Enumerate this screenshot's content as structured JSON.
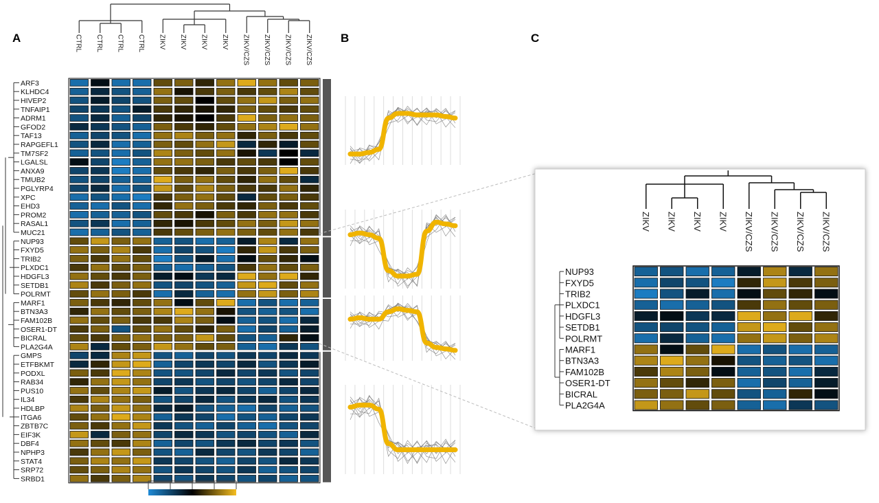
{
  "panels": {
    "a": "A",
    "b": "B",
    "c": "C"
  },
  "colors": {
    "low": "#1f8ad6",
    "mid": "#000000",
    "high": "#f5bd1f",
    "trend": "#f0b400",
    "cluster_bar": "#555555"
  },
  "chart_data": [
    {
      "type": "heatmap",
      "panel": "A",
      "columns": [
        "CTRL",
        "CTRL",
        "CTRL",
        "CTRL",
        "ZIKV",
        "ZIKV",
        "ZIKV",
        "ZIKV",
        "ZIKV/CZS",
        "ZIKV/CZS",
        "ZIKV/CZS",
        "ZIKV/CZS"
      ],
      "rows": [
        "ARF3",
        "KLHDC4",
        "HIVEP2",
        "TNFAIP1",
        "ADRM1",
        "GFOD2",
        "TAF13",
        "RAPGEFL1",
        "TM7SF2",
        "LGALSL",
        "ANXA9",
        "TMUB2",
        "PGLYRP4",
        "XPC",
        "EHD3",
        "PROM2",
        "RASAL1",
        "MUC21",
        "NUP93",
        "FXYD5",
        "TRIB2",
        "PLXDC1",
        "HDGFL3",
        "SETDB1",
        "POLRMT",
        "MARF1",
        "BTN3A3",
        "FAM102B",
        "OSER1-DT",
        "BICRAL",
        "PLA2G4A",
        "GMPS",
        "ETFBKMT",
        "PODXL",
        "RAB34",
        "PUS10",
        "IL34",
        "HDLBP",
        "ITGA6",
        "ZBTB7C",
        "EIF3K",
        "DBF4",
        "NPHP3",
        "STAT4",
        "SRP72",
        "SRBD1"
      ],
      "values": [
        [
          -0.8,
          -0.1,
          -0.8,
          -0.8,
          0.4,
          0.5,
          0.2,
          0.6,
          0.9,
          0.6,
          0.4,
          0.5
        ],
        [
          -0.7,
          -0.3,
          -0.6,
          -0.7,
          0.6,
          0.1,
          0.3,
          0.5,
          0.3,
          0.4,
          0.7,
          0.4
        ],
        [
          -0.6,
          -0.2,
          -0.5,
          -0.6,
          0.5,
          0.4,
          0.0,
          0.4,
          0.6,
          0.8,
          0.5,
          0.6
        ],
        [
          -0.5,
          -0.4,
          -0.6,
          -0.2,
          0.3,
          0.2,
          0.1,
          0.2,
          0.5,
          0.4,
          0.3,
          0.4
        ],
        [
          -0.6,
          -0.3,
          -0.7,
          -0.5,
          0.2,
          0.1,
          0.0,
          0.3,
          0.9,
          0.5,
          0.6,
          0.5
        ],
        [
          -0.3,
          -0.4,
          -0.6,
          -0.7,
          0.5,
          0.3,
          0.2,
          0.4,
          0.6,
          0.7,
          0.9,
          0.6
        ],
        [
          -0.7,
          -0.5,
          -0.6,
          -0.8,
          0.6,
          0.7,
          0.5,
          0.6,
          0.2,
          0.5,
          0.3,
          0.4
        ],
        [
          -0.6,
          -0.3,
          -0.8,
          -0.7,
          0.5,
          0.4,
          0.6,
          0.8,
          -0.3,
          0.2,
          -0.2,
          0.4
        ],
        [
          -0.7,
          -0.6,
          -0.8,
          -0.6,
          0.7,
          0.5,
          0.4,
          0.6,
          0.1,
          -0.4,
          0.0,
          -0.3
        ],
        [
          -0.1,
          -0.5,
          -0.9,
          -0.7,
          0.6,
          0.6,
          0.5,
          0.3,
          0.4,
          0.3,
          0.0,
          0.4
        ],
        [
          -0.5,
          -0.4,
          -0.9,
          -0.8,
          0.4,
          0.3,
          0.2,
          0.5,
          0.3,
          0.5,
          0.9,
          0.3
        ],
        [
          -0.6,
          -0.5,
          -0.7,
          -0.7,
          0.9,
          0.5,
          0.6,
          0.4,
          0.2,
          0.6,
          0.4,
          -0.3
        ],
        [
          -0.5,
          -0.3,
          -0.8,
          -0.6,
          0.8,
          0.4,
          0.7,
          0.5,
          0.3,
          0.3,
          0.6,
          0.2
        ],
        [
          -0.8,
          -0.6,
          -0.8,
          -0.9,
          0.3,
          0.5,
          0.6,
          0.4,
          -0.3,
          0.4,
          0.5,
          0.3
        ],
        [
          -0.7,
          -0.8,
          -0.6,
          -0.8,
          0.2,
          0.6,
          0.5,
          0.3,
          0.2,
          0.5,
          0.3,
          0.4
        ],
        [
          -0.8,
          -0.7,
          -0.7,
          -0.6,
          0.4,
          0.3,
          0.1,
          0.5,
          0.3,
          0.6,
          0.6,
          0.3
        ],
        [
          -0.6,
          -0.4,
          -0.8,
          -0.7,
          0.2,
          0.1,
          0.3,
          0.4,
          0.6,
          0.5,
          0.8,
          0.6
        ],
        [
          -0.8,
          -0.7,
          -0.6,
          -0.7,
          0.3,
          0.4,
          0.5,
          0.6,
          0.5,
          0.4,
          0.6,
          0.3
        ],
        [
          0.4,
          0.8,
          0.5,
          0.6,
          -0.7,
          -0.6,
          -0.8,
          -0.7,
          -0.2,
          0.7,
          -0.3,
          0.6
        ],
        [
          0.6,
          0.5,
          0.7,
          0.3,
          -0.8,
          -0.5,
          -0.6,
          -0.9,
          0.2,
          0.8,
          0.3,
          0.5
        ],
        [
          0.5,
          0.3,
          0.6,
          0.4,
          -0.9,
          -0.6,
          -0.2,
          -0.8,
          -0.1,
          0.4,
          0.2,
          -0.1
        ],
        [
          0.3,
          0.6,
          0.4,
          0.5,
          -0.7,
          -0.8,
          -0.7,
          -0.6,
          0.3,
          0.6,
          0.4,
          0.5
        ],
        [
          0.6,
          0.4,
          0.3,
          0.5,
          -0.2,
          -0.1,
          -0.4,
          -0.3,
          0.9,
          0.6,
          0.9,
          0.2
        ],
        [
          0.7,
          0.3,
          0.5,
          0.6,
          -0.6,
          -0.5,
          -0.6,
          -0.7,
          0.8,
          0.9,
          0.4,
          0.6
        ],
        [
          0.4,
          0.6,
          0.5,
          0.3,
          -0.8,
          -0.3,
          -0.7,
          -0.8,
          0.6,
          0.8,
          0.5,
          0.7
        ],
        [
          0.5,
          0.3,
          0.2,
          0.4,
          0.6,
          -0.1,
          0.4,
          0.9,
          -0.8,
          -0.6,
          -0.8,
          -0.7
        ],
        [
          0.2,
          0.6,
          0.4,
          0.5,
          0.7,
          0.9,
          0.6,
          0.1,
          -0.6,
          -0.7,
          -0.6,
          -0.8
        ],
        [
          0.6,
          0.4,
          0.5,
          0.3,
          0.3,
          0.7,
          0.5,
          -0.1,
          -0.7,
          -0.6,
          -0.8,
          -0.3
        ],
        [
          0.3,
          0.5,
          -0.6,
          0.4,
          0.6,
          0.4,
          0.2,
          0.5,
          -0.8,
          -0.5,
          -0.7,
          -0.2
        ],
        [
          0.4,
          0.3,
          0.5,
          0.6,
          0.5,
          0.5,
          0.8,
          0.4,
          -0.6,
          -0.7,
          0.2,
          -0.1
        ],
        [
          0.7,
          -0.3,
          0.4,
          0.5,
          0.8,
          0.6,
          0.4,
          0.5,
          -0.7,
          -0.8,
          -0.4,
          -0.6
        ],
        [
          -0.5,
          -0.3,
          0.7,
          0.8,
          -0.6,
          -0.7,
          -0.5,
          -0.6,
          -0.4,
          -0.5,
          -0.3,
          -0.4
        ],
        [
          -0.3,
          0.2,
          0.8,
          0.9,
          -0.7,
          -0.5,
          -0.4,
          -0.5,
          -0.3,
          -0.6,
          -0.4,
          -0.2
        ],
        [
          0.5,
          0.3,
          0.9,
          0.7,
          -0.6,
          -0.6,
          -0.5,
          -0.3,
          -0.5,
          -0.4,
          -0.6,
          -0.5
        ],
        [
          0.2,
          0.6,
          0.8,
          0.6,
          -0.5,
          -0.4,
          -0.6,
          -0.5,
          -0.6,
          -0.5,
          -0.3,
          -0.5
        ],
        [
          0.6,
          0.4,
          0.7,
          0.8,
          -0.2,
          -0.6,
          -0.4,
          -0.3,
          -0.5,
          -0.7,
          -0.5,
          -0.3
        ],
        [
          0.3,
          0.7,
          0.6,
          0.5,
          -0.6,
          -0.5,
          -0.3,
          -0.6,
          -0.4,
          -0.3,
          -0.6,
          -0.4
        ],
        [
          0.7,
          0.5,
          0.8,
          0.6,
          -0.3,
          -0.2,
          -0.6,
          -0.7,
          -0.8,
          -0.5,
          -0.7,
          -0.6
        ],
        [
          0.4,
          0.6,
          0.9,
          0.7,
          -0.7,
          -0.4,
          -0.5,
          -0.8,
          -0.6,
          -0.7,
          -0.5,
          -0.4
        ],
        [
          0.5,
          0.3,
          0.6,
          0.8,
          -0.4,
          -0.6,
          -0.7,
          -0.5,
          -0.7,
          -0.8,
          -0.6,
          -0.5
        ],
        [
          0.8,
          -0.3,
          0.5,
          0.6,
          -0.5,
          -0.3,
          -0.4,
          -0.6,
          -0.5,
          -0.6,
          -0.7,
          -0.3
        ],
        [
          0.6,
          0.4,
          0.3,
          0.7,
          -0.7,
          -0.5,
          -0.6,
          -0.4,
          -0.3,
          -0.5,
          -0.4,
          -0.6
        ],
        [
          0.3,
          0.6,
          0.8,
          0.5,
          -0.6,
          -0.7,
          -0.3,
          -0.5,
          -0.6,
          -0.4,
          -0.5,
          -0.7
        ],
        [
          0.5,
          0.7,
          0.6,
          0.8,
          -0.4,
          -0.5,
          -0.6,
          -0.7,
          -0.5,
          -0.6,
          -0.3,
          -0.4
        ],
        [
          0.4,
          0.5,
          0.7,
          0.6,
          -0.6,
          -0.4,
          -0.5,
          -0.6,
          -0.4,
          -0.7,
          -0.6,
          -0.5
        ],
        [
          0.6,
          0.3,
          0.5,
          0.7,
          -0.5,
          -0.6,
          -0.4,
          -0.5,
          -0.6,
          -0.5,
          -0.7,
          -0.6
        ]
      ],
      "color_scale": {
        "colors": [
          "#1f8ad6",
          "#000000",
          "#f5bd1f"
        ],
        "range": [
          -1,
          1
        ]
      },
      "row_clusters": [
        [
          0,
          17
        ],
        [
          18,
          24
        ],
        [
          25,
          30
        ],
        [
          31,
          45
        ]
      ],
      "highlight": {
        "rows": [
          18,
          30
        ],
        "cols": [
          4,
          11
        ]
      }
    },
    {
      "type": "line",
      "panel": "B",
      "timepoints": 12,
      "clusters": [
        {
          "trend": [
            -0.75,
            -0.75,
            -0.7,
            -0.6,
            0.4,
            0.55,
            0.55,
            0.5,
            0.5,
            0.5,
            0.45,
            0.4
          ]
        },
        {
          "trend": [
            0.4,
            0.45,
            0.4,
            0.3,
            -0.6,
            -0.75,
            -0.75,
            -0.7,
            0.5,
            0.75,
            0.7,
            0.65
          ]
        },
        {
          "trend": [
            0.3,
            0.35,
            0.3,
            0.3,
            0.55,
            0.65,
            0.6,
            0.55,
            -0.5,
            -0.65,
            -0.7,
            -0.75
          ]
        },
        {
          "trend": [
            0.55,
            0.6,
            0.6,
            0.5,
            -0.35,
            -0.5,
            -0.5,
            -0.5,
            -0.5,
            -0.5,
            -0.5,
            -0.5
          ]
        }
      ]
    },
    {
      "type": "heatmap",
      "panel": "C",
      "columns": [
        "ZIKV",
        "ZIKV",
        "ZIKV",
        "ZIKV",
        "ZIKV/CZS",
        "ZIKV/CZS",
        "ZIKV/CZS",
        "ZIKV/CZS"
      ],
      "rows": [
        "NUP93",
        "FXYD5",
        "TRIB2",
        "PLXDC1",
        "HDGFL3",
        "SETDB1",
        "POLRMT",
        "MARF1",
        "BTN3A3",
        "FAM102B",
        "OSER1-DT",
        "BICRAL",
        "PLA2G4A"
      ],
      "values": [
        [
          -0.7,
          -0.6,
          -0.8,
          -0.7,
          -0.2,
          0.7,
          -0.3,
          0.6
        ],
        [
          -0.8,
          -0.5,
          -0.6,
          -0.9,
          0.2,
          0.8,
          0.3,
          0.5
        ],
        [
          -0.9,
          -0.6,
          -0.2,
          -0.8,
          -0.1,
          0.4,
          0.2,
          -0.1
        ],
        [
          -0.7,
          -0.8,
          -0.7,
          -0.6,
          0.3,
          0.6,
          0.4,
          0.5
        ],
        [
          -0.2,
          -0.1,
          -0.4,
          -0.3,
          0.9,
          0.6,
          0.9,
          0.2
        ],
        [
          -0.6,
          -0.5,
          -0.6,
          -0.7,
          0.8,
          0.9,
          0.4,
          0.6
        ],
        [
          -0.8,
          -0.3,
          -0.7,
          -0.8,
          0.6,
          0.8,
          0.5,
          0.7
        ],
        [
          0.6,
          -0.1,
          0.4,
          0.9,
          -0.8,
          -0.6,
          -0.8,
          -0.7
        ],
        [
          0.7,
          0.9,
          0.6,
          0.1,
          -0.6,
          -0.7,
          -0.6,
          -0.8
        ],
        [
          0.3,
          0.7,
          0.5,
          -0.1,
          -0.7,
          -0.6,
          -0.8,
          -0.3
        ],
        [
          0.6,
          0.4,
          0.2,
          0.5,
          -0.8,
          -0.5,
          -0.7,
          -0.2
        ],
        [
          0.5,
          0.5,
          0.8,
          0.4,
          -0.6,
          -0.7,
          0.2,
          -0.1
        ],
        [
          0.8,
          0.6,
          0.4,
          0.5,
          -0.7,
          -0.8,
          -0.4,
          -0.6
        ]
      ],
      "color_scale": {
        "colors": [
          "#1f8ad6",
          "#000000",
          "#f5bd1f"
        ],
        "range": [
          -1,
          1
        ]
      },
      "row_clusters": [
        [
          0,
          6
        ],
        [
          7,
          12
        ]
      ]
    }
  ]
}
